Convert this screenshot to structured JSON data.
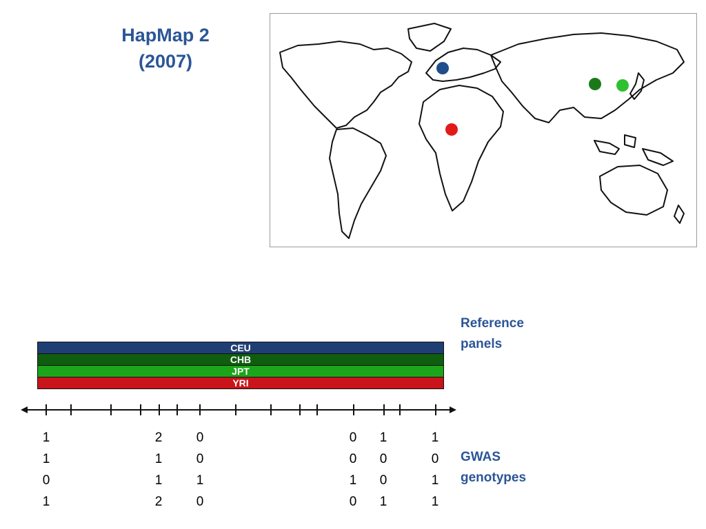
{
  "title": {
    "line1": "HapMap 2",
    "line2": "(2007)"
  },
  "map": {
    "markers": [
      {
        "population": "CEU",
        "color": "#1f4e8c"
      },
      {
        "population": "CHB",
        "color": "#1a7a1a"
      },
      {
        "population": "JPT",
        "color": "#2ec02e"
      },
      {
        "population": "YRI",
        "color": "#e31a1a"
      }
    ]
  },
  "reference_panels": {
    "label_line1": "Reference",
    "label_line2": "panels",
    "bars": [
      {
        "name": "CEU",
        "color": "#1f3f74"
      },
      {
        "name": "CHB",
        "color": "#0f5e0f"
      },
      {
        "name": "JPT",
        "color": "#1aa51a"
      },
      {
        "name": "YRI",
        "color": "#c8141a"
      }
    ]
  },
  "gwas": {
    "label_line1": "GWAS",
    "label_line2": "genotypes",
    "columns": [
      [
        "1",
        "1",
        "0",
        "1"
      ],
      [
        "2",
        "1",
        "1",
        "2"
      ],
      [
        "0",
        "0",
        "1",
        "0"
      ],
      [
        "0",
        "0",
        "1",
        "0"
      ],
      [
        "1",
        "0",
        "0",
        "1"
      ],
      [
        "1",
        "0",
        "1",
        "1"
      ]
    ]
  }
}
